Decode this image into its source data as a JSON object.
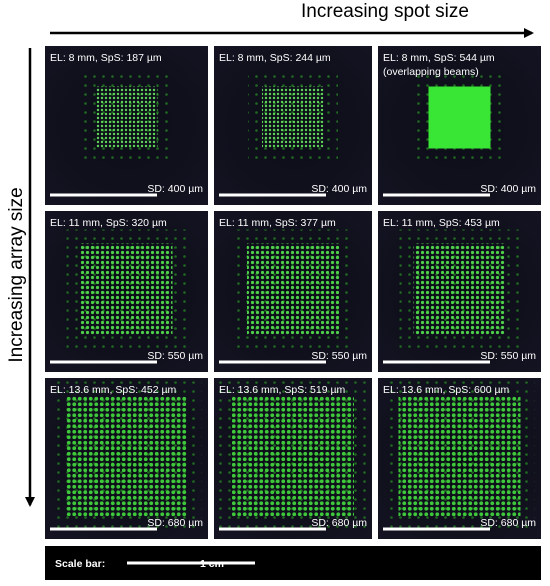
{
  "header": {
    "x_label": "Increasing spot size",
    "y_label": "Increasing array size"
  },
  "panels": [
    [
      {
        "label": "EL: 8 mm, SpS: 187 µm",
        "sd": "SD: 400 µm"
      },
      {
        "label": "EL: 8 mm, SpS: 244 µm",
        "sd": "SD: 400 µm"
      },
      {
        "label": "EL: 8 mm, SpS: 544 µm",
        "note": "(overlapping beams)",
        "sd": "SD: 400 µm"
      }
    ],
    [
      {
        "label": "EL: 11 mm, SpS: 320 µm",
        "sd": "SD: 550 µm"
      },
      {
        "label": "EL: 11 mm, SpS: 377 µm",
        "sd": "SD: 550 µm"
      },
      {
        "label": "EL: 11 mm, SpS: 453 µm",
        "sd": "SD: 550 µm"
      }
    ],
    [
      {
        "label": "EL: 13.6 mm, SpS: 452 µm",
        "sd": "SD: 680 µm"
      },
      {
        "label": "EL: 13.6 mm, SpS: 519 µm",
        "sd": "SD: 680 µm"
      },
      {
        "label": "EL: 13.6 mm, SpS: 600 µm",
        "sd": "SD: 680 µm"
      }
    ]
  ],
  "scale_bar": {
    "label": "Scale bar:",
    "length": "1 cm"
  }
}
